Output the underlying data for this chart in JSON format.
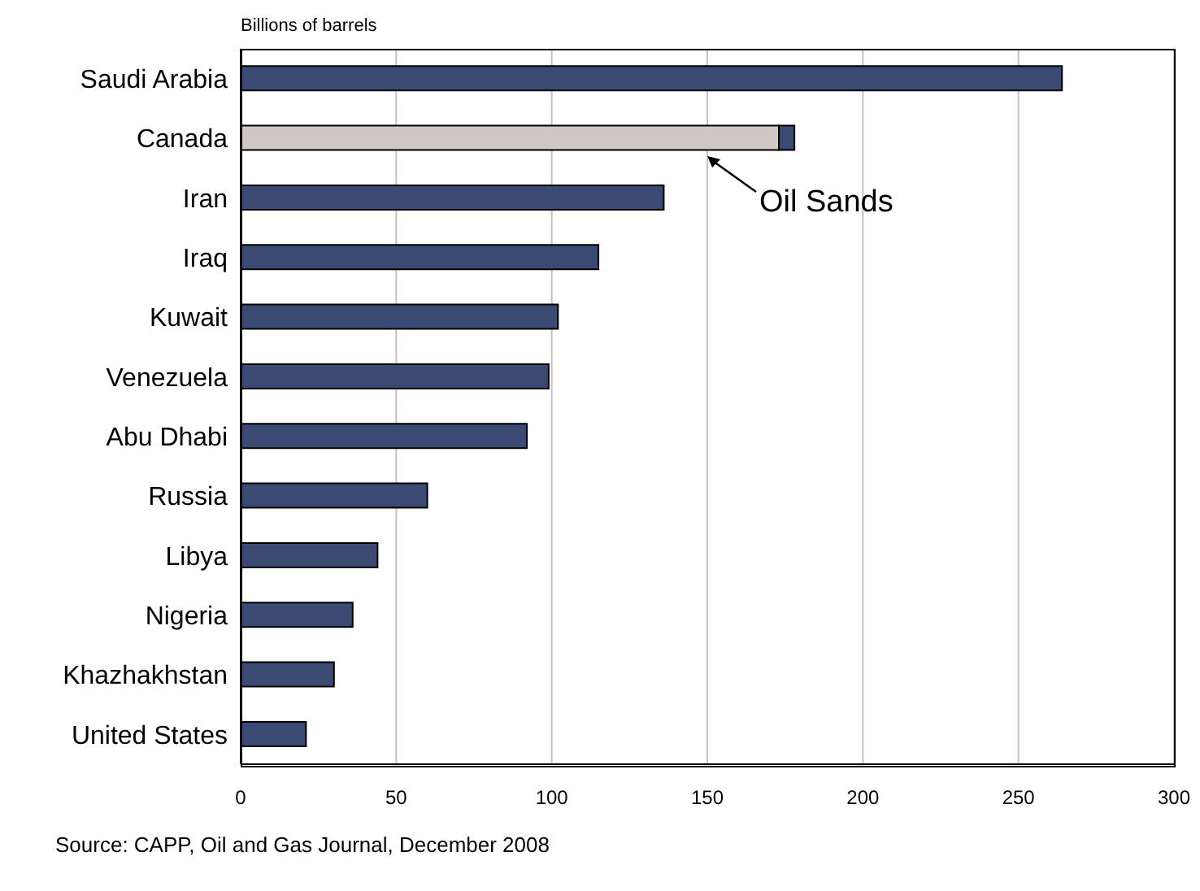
{
  "chart_data": {
    "type": "bar",
    "orientation": "horizontal",
    "stacked": true,
    "xlabel": "Billions of barrels",
    "categories": [
      "Saudi Arabia",
      "Canada",
      "Iran",
      "Iraq",
      "Kuwait",
      "Venezuela",
      "Abu Dhabi",
      "Russia",
      "Libya",
      "Nigeria",
      "Khazhakhstan",
      "United States"
    ],
    "series": [
      {
        "color": "#d0c8c4",
        "values": [
          null,
          173,
          null,
          null,
          null,
          null,
          null,
          null,
          null,
          null,
          null,
          null
        ]
      },
      {
        "color": "#3a4a72",
        "values": [
          264,
          5,
          136,
          115,
          102,
          99,
          92,
          60,
          44,
          36,
          30,
          21
        ]
      }
    ],
    "xlim": [
      0,
      300
    ],
    "xticks": [
      0,
      50,
      100,
      150,
      200,
      250,
      300
    ],
    "grid": "x",
    "annotations": [
      "Oil Sands",
      "Source: CAPP, Oil and Gas Journal, December 2008"
    ]
  }
}
